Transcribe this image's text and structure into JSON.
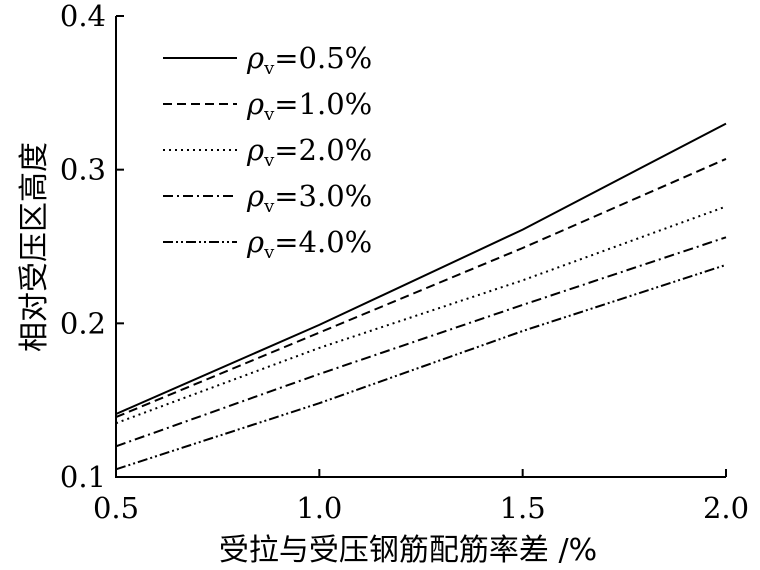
{
  "chart_data": {
    "type": "line",
    "title": "",
    "xlabel": "受拉与受压钢筋配筋率差 /%",
    "ylabel": "相对受压区高度",
    "xlim": [
      0.5,
      2.0
    ],
    "ylim": [
      0.1,
      0.4
    ],
    "xticks": [
      0.5,
      1.0,
      1.5,
      2.0
    ],
    "xtick_labels": [
      "0.5",
      "1.0",
      "1.5",
      "2.0"
    ],
    "yticks": [
      0.1,
      0.2,
      0.3,
      0.4
    ],
    "ytick_labels": [
      "0.1",
      "0.2",
      "0.3",
      "0.4"
    ],
    "grid": false,
    "legend_position": "top-left",
    "x": [
      0.5,
      1.0,
      1.5,
      2.0
    ],
    "series": [
      {
        "name": "ρv=0.5%",
        "label_symbol": "ρ",
        "label_sub": "v",
        "label_value": "=0.5%",
        "dash": "solid",
        "values": [
          0.141,
          0.199,
          0.261,
          0.33
        ]
      },
      {
        "name": "ρv=1.0%",
        "label_symbol": "ρ",
        "label_sub": "v",
        "label_value": "=1.0%",
        "dash": "dashed",
        "values": [
          0.139,
          0.194,
          0.249,
          0.307
        ]
      },
      {
        "name": "ρv=2.0%",
        "label_symbol": "ρ",
        "label_sub": "v",
        "label_value": "=2.0%",
        "dash": "dotted",
        "values": [
          0.135,
          0.184,
          0.228,
          0.276
        ]
      },
      {
        "name": "ρv=3.0%",
        "label_symbol": "ρ",
        "label_sub": "v",
        "label_value": "=3.0%",
        "dash": "dashdot",
        "values": [
          0.12,
          0.167,
          0.212,
          0.256
        ]
      },
      {
        "name": "ρv=4.0%",
        "label_symbol": "ρ",
        "label_sub": "v",
        "label_value": "=4.0%",
        "dash": "dashdotdot",
        "values": [
          0.105,
          0.148,
          0.195,
          0.238
        ]
      }
    ]
  }
}
